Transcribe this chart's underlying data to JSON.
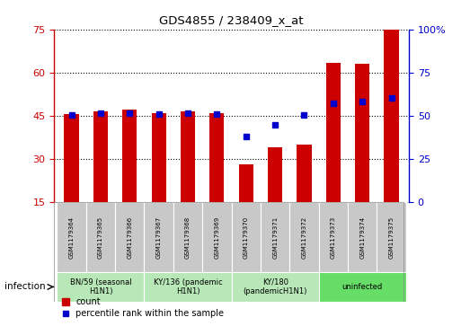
{
  "title": "GDS4855 / 238409_x_at",
  "samples": [
    "GSM1179364",
    "GSM1179365",
    "GSM1179366",
    "GSM1179367",
    "GSM1179368",
    "GSM1179369",
    "GSM1179370",
    "GSM1179371",
    "GSM1179372",
    "GSM1179373",
    "GSM1179374",
    "GSM1179375"
  ],
  "counts": [
    45.5,
    46.5,
    47.0,
    46.0,
    46.5,
    46.0,
    28.0,
    34.0,
    35.0,
    63.5,
    63.0,
    75.0
  ],
  "percentiles": [
    50.5,
    51.5,
    51.5,
    51.0,
    51.5,
    51.0,
    38.0,
    44.5,
    50.5,
    57.0,
    58.5,
    60.5
  ],
  "left_ylim": [
    15,
    75
  ],
  "right_ylim": [
    0,
    100
  ],
  "left_yticks": [
    15,
    30,
    45,
    60,
    75
  ],
  "right_yticks": [
    0,
    25,
    50,
    75,
    100
  ],
  "right_yticklabels": [
    "0",
    "25",
    "50",
    "75",
    "100%"
  ],
  "bar_color": "#cc0000",
  "dot_color": "#0000cc",
  "groups": [
    {
      "label": "BN/59 (seasonal\nH1N1)",
      "start": 0,
      "end": 3,
      "color": "#b8e8b8"
    },
    {
      "label": "KY/136 (pandemic\nH1N1)",
      "start": 3,
      "end": 6,
      "color": "#b8e8b8"
    },
    {
      "label": "KY/180\n(pandemicH1N1)",
      "start": 6,
      "end": 9,
      "color": "#b8e8b8"
    },
    {
      "label": "uninfected",
      "start": 9,
      "end": 12,
      "color": "#66dd66"
    }
  ],
  "sample_box_color": "#c8c8c8",
  "infection_label": "infection",
  "legend_count_label": "count",
  "legend_pct_label": "percentile rank within the sample",
  "left_tick_color": "#cc0000",
  "right_tick_color": "#0000cc"
}
